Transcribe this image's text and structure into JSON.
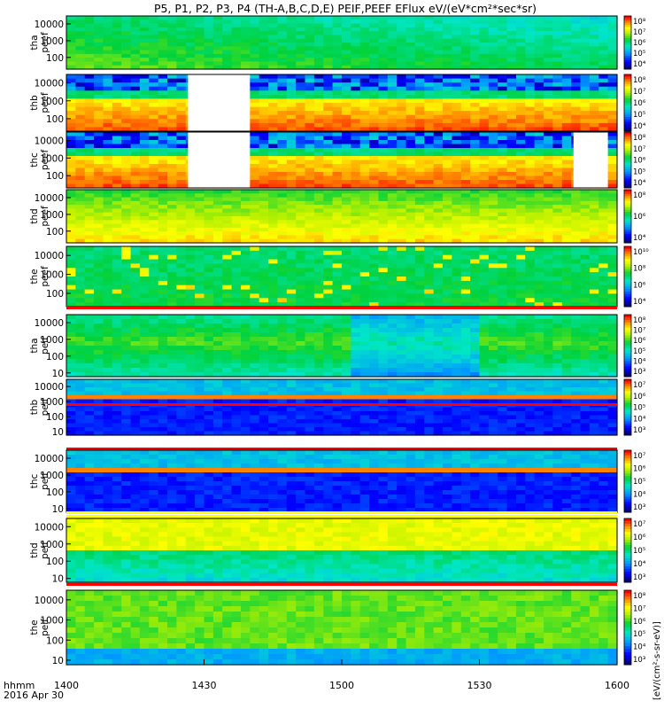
{
  "chart_data": {
    "type": "heatmap",
    "title": "P5, P1, P2, P3, P4 (TH-A,B,C,D,E) PEIF,PEEF EFlux eV/(eV*cm²*sec*sr)",
    "x_start_label": "hhmm",
    "x_date_label": "2016 Apr 30",
    "x_ticks": [
      "1400",
      "1430",
      "1500",
      "1530",
      "1600"
    ],
    "x_tick_minutes": [
      0,
      30,
      60,
      90,
      120
    ],
    "x_range_minutes": [
      0,
      120
    ],
    "colorbar_label": "[eV/(cm²-s-sr-eV)]",
    "colorbar_label_partial": "eV/(cm²-s-sr-eV) (4)",
    "panels": [
      {
        "label": "tha peef",
        "species": "electron",
        "probe": "tha",
        "y_ticks": [
          "100",
          "1000",
          "10000"
        ],
        "y_tick_values": [
          100,
          1000,
          10000
        ],
        "ylim": [
          20,
          30000
        ],
        "log_y": true,
        "colorbar_ticks": [
          "10⁸",
          "10⁷",
          "10⁶",
          "10⁵",
          "10⁴"
        ],
        "data_gaps_minutes": [],
        "pattern": "green_fade"
      },
      {
        "label": "thb peef",
        "species": "electron",
        "probe": "thb",
        "y_ticks": [
          "100",
          "1000",
          "10000"
        ],
        "y_tick_values": [
          100,
          1000,
          10000
        ],
        "ylim": [
          20,
          30000
        ],
        "log_y": true,
        "colorbar_ticks": [
          "10⁸",
          "10⁷",
          "10⁶",
          "10⁵",
          "10⁴"
        ],
        "data_gaps_minutes": [
          [
            26.5,
            40
          ]
        ],
        "pattern": "red_low"
      },
      {
        "label": "thc peef",
        "species": "electron",
        "probe": "thc",
        "y_ticks": [
          "100",
          "1000",
          "10000"
        ],
        "y_tick_values": [
          100,
          1000,
          10000
        ],
        "ylim": [
          20,
          30000
        ],
        "log_y": true,
        "colorbar_ticks": [
          "10⁸",
          "10⁷",
          "10⁶",
          "10⁵",
          "10⁴"
        ],
        "data_gaps_minutes": [
          [
            26.5,
            40
          ],
          [
            110.5,
            118
          ]
        ],
        "pattern": "red_low"
      },
      {
        "label": "thd peef",
        "species": "electron",
        "probe": "thd",
        "y_ticks": [
          "100",
          "1000",
          "10000"
        ],
        "y_tick_values": [
          100,
          1000,
          10000
        ],
        "ylim": [
          20,
          30000
        ],
        "log_y": true,
        "colorbar_ticks": [
          "10⁸",
          "10⁶",
          "10⁴"
        ],
        "data_gaps_minutes": [],
        "pattern": "yellow"
      },
      {
        "label": "the peef",
        "species": "electron",
        "probe": "the",
        "y_ticks": [
          "100",
          "1000",
          "10000"
        ],
        "y_tick_values": [
          100,
          1000,
          10000
        ],
        "ylim": [
          20,
          30000
        ],
        "log_y": true,
        "colorbar_ticks": [
          "10¹⁰",
          "10⁸",
          "10⁶",
          "10⁴"
        ],
        "data_gaps_minutes": [],
        "pattern": "green_spiky"
      },
      {
        "label": "tha peif",
        "species": "ion",
        "probe": "tha",
        "y_ticks": [
          "10",
          "100",
          "1000",
          "10000"
        ],
        "y_tick_values": [
          10,
          100,
          1000,
          10000
        ],
        "ylim": [
          6,
          30000
        ],
        "log_y": true,
        "colorbar_ticks": [
          "10⁸",
          "10⁷",
          "10⁶",
          "10⁵",
          "10⁴",
          "10³"
        ],
        "data_gaps_minutes": [],
        "pattern": "green_ion"
      },
      {
        "label": "thb peif",
        "species": "ion",
        "probe": "thb",
        "y_ticks": [
          "10",
          "100",
          "1000",
          "10000"
        ],
        "y_tick_values": [
          10,
          100,
          1000,
          10000
        ],
        "ylim": [
          6,
          30000
        ],
        "log_y": true,
        "colorbar_ticks": [
          "10⁷",
          "10⁶",
          "10⁵",
          "10⁴",
          "10³"
        ],
        "data_gaps_minutes": [],
        "pattern": "blue_band"
      },
      {
        "label": "thc peif",
        "species": "ion",
        "probe": "thc",
        "y_ticks": [
          "10",
          "100",
          "1000",
          "10000"
        ],
        "y_tick_values": [
          10,
          100,
          1000,
          10000
        ],
        "ylim": [
          6,
          30000
        ],
        "log_y": true,
        "colorbar_ticks": [
          "10⁷",
          "10⁶",
          "10⁵",
          "10⁴",
          "10³"
        ],
        "data_gaps_minutes": [],
        "pattern": "blue_band"
      },
      {
        "label": "thd peif",
        "species": "ion",
        "probe": "thd",
        "y_ticks": [
          "10",
          "100",
          "1000",
          "10000"
        ],
        "y_tick_values": [
          10,
          100,
          1000,
          10000
        ],
        "ylim": [
          6,
          30000
        ],
        "log_y": true,
        "colorbar_ticks": [
          "10⁷",
          "10⁶",
          "10⁵",
          "10⁴",
          "10³"
        ],
        "data_gaps_minutes": [],
        "pattern": "yellow_ion"
      },
      {
        "label": "the peif",
        "species": "ion",
        "probe": "the",
        "y_ticks": [
          "10",
          "100",
          "1000",
          "10000"
        ],
        "y_tick_values": [
          10,
          100,
          1000,
          10000
        ],
        "ylim": [
          6,
          30000
        ],
        "log_y": true,
        "colorbar_ticks": [
          "10⁸",
          "10⁷",
          "10⁶",
          "10⁵",
          "10⁴",
          "10³"
        ],
        "data_gaps_minutes": [],
        "pattern": "green_ion2"
      }
    ]
  }
}
